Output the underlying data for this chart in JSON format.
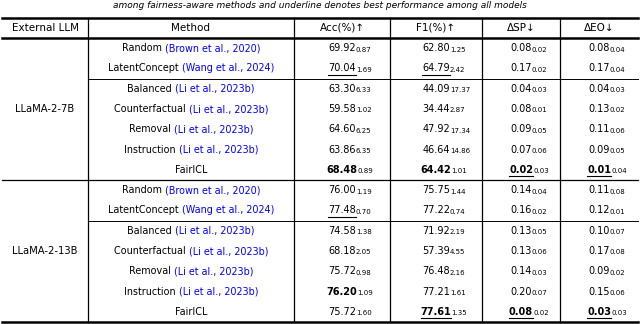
{
  "caption": "among fairness-aware methods and underline denotes best performance among all models",
  "headers": [
    "External LLM",
    "Method",
    "Acc(%)↑",
    "F1(%)↑",
    "ΔSP↓",
    "ΔEO↓"
  ],
  "sections": [
    {
      "llm": "LLaMA-2-7B",
      "subsections": [
        {
          "rows": [
            {
              "method_plain": "Random ",
              "method_cite": "(Brown et al., 2020)",
              "acc": "69.92",
              "acc_sub": "0.87",
              "f1": "62.80",
              "f1_sub": "1.25",
              "sp": "0.08",
              "sp_sub": "0.02",
              "eo": "0.08",
              "eo_sub": "0.04",
              "acc_bold": false,
              "f1_bold": false,
              "sp_bold": false,
              "eo_bold": false,
              "acc_ul": false,
              "f1_ul": false,
              "sp_ul": false,
              "eo_ul": false
            },
            {
              "method_plain": "LatentConcept ",
              "method_cite": "(Wang et al., 2024)",
              "acc": "70.04",
              "acc_sub": "1.69",
              "f1": "64.79",
              "f1_sub": "2.42",
              "sp": "0.17",
              "sp_sub": "0.02",
              "eo": "0.17",
              "eo_sub": "0.04",
              "acc_bold": false,
              "f1_bold": false,
              "sp_bold": false,
              "eo_bold": false,
              "acc_ul": true,
              "f1_ul": true,
              "sp_ul": false,
              "eo_ul": false
            }
          ]
        },
        {
          "rows": [
            {
              "method_plain": "Balanced ",
              "method_cite": "(Li et al., 2023b)",
              "acc": "63.30",
              "acc_sub": "6.33",
              "f1": "44.09",
              "f1_sub": "17.37",
              "sp": "0.04",
              "sp_sub": "0.03",
              "eo": "0.04",
              "eo_sub": "0.03",
              "acc_bold": false,
              "f1_bold": false,
              "sp_bold": false,
              "eo_bold": false,
              "acc_ul": false,
              "f1_ul": false,
              "sp_ul": false,
              "eo_ul": false
            },
            {
              "method_plain": "Counterfactual ",
              "method_cite": "(Li et al., 2023b)",
              "acc": "59.58",
              "acc_sub": "1.02",
              "f1": "34.44",
              "f1_sub": "2.87",
              "sp": "0.08",
              "sp_sub": "0.01",
              "eo": "0.13",
              "eo_sub": "0.02",
              "acc_bold": false,
              "f1_bold": false,
              "sp_bold": false,
              "eo_bold": false,
              "acc_ul": false,
              "f1_ul": false,
              "sp_ul": false,
              "eo_ul": false
            },
            {
              "method_plain": "Removal ",
              "method_cite": "(Li et al., 2023b)",
              "acc": "64.60",
              "acc_sub": "6.25",
              "f1": "47.92",
              "f1_sub": "17.34",
              "sp": "0.09",
              "sp_sub": "0.05",
              "eo": "0.11",
              "eo_sub": "0.06",
              "acc_bold": false,
              "f1_bold": false,
              "sp_bold": false,
              "eo_bold": false,
              "acc_ul": false,
              "f1_ul": false,
              "sp_ul": false,
              "eo_ul": false
            },
            {
              "method_plain": "Instruction ",
              "method_cite": "(Li et al., 2023b)",
              "acc": "63.86",
              "acc_sub": "6.35",
              "f1": "46.64",
              "f1_sub": "14.86",
              "sp": "0.07",
              "sp_sub": "0.06",
              "eo": "0.09",
              "eo_sub": "0.05",
              "acc_bold": false,
              "f1_bold": false,
              "sp_bold": false,
              "eo_bold": false,
              "acc_ul": false,
              "f1_ul": false,
              "sp_ul": false,
              "eo_ul": false
            },
            {
              "method_plain": "FairICL",
              "method_cite": "",
              "acc": "68.48",
              "acc_sub": "0.89",
              "f1": "64.42",
              "f1_sub": "1.01",
              "sp": "0.02",
              "sp_sub": "0.03",
              "eo": "0.01",
              "eo_sub": "0.04",
              "acc_bold": true,
              "f1_bold": true,
              "sp_bold": true,
              "eo_bold": true,
              "acc_ul": false,
              "f1_ul": false,
              "sp_ul": true,
              "eo_ul": true
            }
          ]
        }
      ]
    },
    {
      "llm": "LLaMA-2-13B",
      "subsections": [
        {
          "rows": [
            {
              "method_plain": "Random ",
              "method_cite": "(Brown et al., 2020)",
              "acc": "76.00",
              "acc_sub": "1.19",
              "f1": "75.75",
              "f1_sub": "1.44",
              "sp": "0.14",
              "sp_sub": "0.04",
              "eo": "0.11",
              "eo_sub": "0.08",
              "acc_bold": false,
              "f1_bold": false,
              "sp_bold": false,
              "eo_bold": false,
              "acc_ul": false,
              "f1_ul": false,
              "sp_ul": false,
              "eo_ul": false
            },
            {
              "method_plain": "LatentConcept ",
              "method_cite": "(Wang et al., 2024)",
              "acc": "77.48",
              "acc_sub": "0.70",
              "f1": "77.22",
              "f1_sub": "0.74",
              "sp": "0.16",
              "sp_sub": "0.02",
              "eo": "0.12",
              "eo_sub": "0.01",
              "acc_bold": false,
              "f1_bold": false,
              "sp_bold": false,
              "eo_bold": false,
              "acc_ul": true,
              "f1_ul": false,
              "sp_ul": false,
              "eo_ul": false
            }
          ]
        },
        {
          "rows": [
            {
              "method_plain": "Balanced ",
              "method_cite": "(Li et al., 2023b)",
              "acc": "74.58",
              "acc_sub": "1.38",
              "f1": "71.92",
              "f1_sub": "2.19",
              "sp": "0.13",
              "sp_sub": "0.05",
              "eo": "0.10",
              "eo_sub": "0.07",
              "acc_bold": false,
              "f1_bold": false,
              "sp_bold": false,
              "eo_bold": false,
              "acc_ul": false,
              "f1_ul": false,
              "sp_ul": false,
              "eo_ul": false
            },
            {
              "method_plain": "Counterfactual ",
              "method_cite": "(Li et al., 2023b)",
              "acc": "68.18",
              "acc_sub": "2.05",
              "f1": "57.39",
              "f1_sub": "4.55",
              "sp": "0.13",
              "sp_sub": "0.06",
              "eo": "0.17",
              "eo_sub": "0.08",
              "acc_bold": false,
              "f1_bold": false,
              "sp_bold": false,
              "eo_bold": false,
              "acc_ul": false,
              "f1_ul": false,
              "sp_ul": false,
              "eo_ul": false
            },
            {
              "method_plain": "Removal ",
              "method_cite": "(Li et al., 2023b)",
              "acc": "75.72",
              "acc_sub": "0.98",
              "f1": "76.48",
              "f1_sub": "2.16",
              "sp": "0.14",
              "sp_sub": "0.03",
              "eo": "0.09",
              "eo_sub": "0.02",
              "acc_bold": false,
              "f1_bold": false,
              "sp_bold": false,
              "eo_bold": false,
              "acc_ul": false,
              "f1_ul": false,
              "sp_ul": false,
              "eo_ul": false
            },
            {
              "method_plain": "Instruction ",
              "method_cite": "(Li et al., 2023b)",
              "acc": "76.20",
              "acc_sub": "1.09",
              "f1": "77.21",
              "f1_sub": "1.61",
              "sp": "0.20",
              "sp_sub": "0.07",
              "eo": "0.15",
              "eo_sub": "0.06",
              "acc_bold": true,
              "f1_bold": false,
              "sp_bold": false,
              "eo_bold": false,
              "acc_ul": false,
              "f1_ul": false,
              "sp_ul": false,
              "eo_ul": false
            },
            {
              "method_plain": "FairICL",
              "method_cite": "",
              "acc": "75.72",
              "acc_sub": "1.60",
              "f1": "77.61",
              "f1_sub": "1.35",
              "sp": "0.08",
              "sp_sub": "0.02",
              "eo": "0.03",
              "eo_sub": "0.03",
              "acc_bold": false,
              "f1_bold": true,
              "sp_bold": true,
              "eo_bold": true,
              "acc_ul": false,
              "f1_ul": true,
              "sp_ul": true,
              "eo_ul": true
            }
          ]
        }
      ]
    }
  ]
}
